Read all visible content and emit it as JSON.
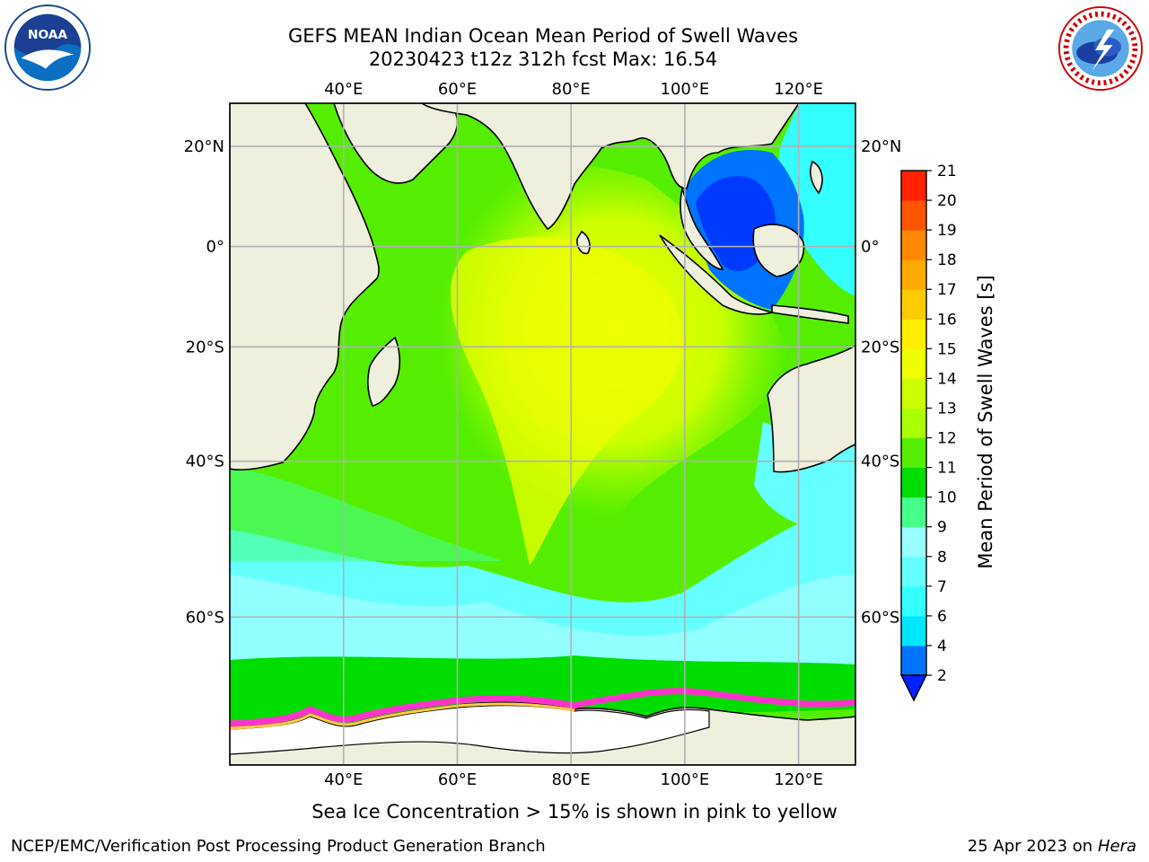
{
  "header": {
    "title_line1": "GEFS MEAN Indian Ocean Mean Period of Swell Waves",
    "title_line2": "20230423 t12z 312h fcst   Max: 16.54"
  },
  "logos": {
    "noaa": {
      "name": "noaa-logo",
      "text": "NOAA"
    },
    "nws": {
      "name": "nws-logo",
      "text": "NATIONAL WEATHER SERVICE"
    }
  },
  "map": {
    "longitude_ticks": [
      "40°E",
      "60°E",
      "80°E",
      "100°E",
      "120°E"
    ],
    "longitude_values": [
      40,
      60,
      80,
      100,
      120
    ],
    "latitude_ticks": [
      "20°N",
      "0°",
      "20°S",
      "40°S",
      "60°S"
    ],
    "latitude_values": [
      20,
      0,
      -20,
      -40,
      -60
    ],
    "lon_range": [
      20,
      130
    ],
    "lat_range": [
      -72,
      28
    ],
    "colors": {
      "land": "#efefde",
      "grid": "#b0b0b0",
      "sea_ice": "#ff33cc",
      "ice_shelf": "#ffffff"
    }
  },
  "colorbar": {
    "label": "Mean Period of Swell Waves [s]",
    "tick_labels": [
      "2",
      "4",
      "6",
      "7",
      "8",
      "9",
      "10",
      "11",
      "12",
      "13",
      "14",
      "15",
      "16",
      "17",
      "18",
      "19",
      "20",
      "21"
    ],
    "levels": [
      2,
      4,
      6,
      7,
      8,
      9,
      10,
      11,
      12,
      13,
      14,
      15,
      16,
      17,
      18,
      19,
      20,
      21
    ],
    "colors": [
      "#0073ff",
      "#00e6ff",
      "#33ffff",
      "#66ffff",
      "#99ffff",
      "#44ff88",
      "#00dd00",
      "#55ee00",
      "#aaff00",
      "#ccff00",
      "#eeff00",
      "#ffee00",
      "#ffcc00",
      "#ffaa00",
      "#ff8800",
      "#ff5500",
      "#ff2200"
    ],
    "under_color": "#0022ff"
  },
  "notes": {
    "ice_note": "Sea Ice Concentration > 15% is shown in pink to yellow"
  },
  "footer": {
    "left": "NCEP/EMC/Verification Post Processing Product Generation Branch",
    "right_date": "25 Apr 2023 on ",
    "right_machine": "Hera"
  }
}
